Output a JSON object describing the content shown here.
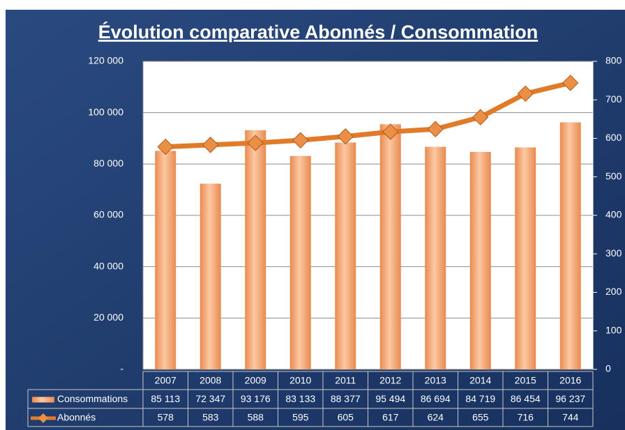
{
  "chart_data": {
    "type": "bar",
    "title": "Évolution comparative Abonnés / Consommation",
    "categories": [
      "2007",
      "2008",
      "2009",
      "2010",
      "2011",
      "2012",
      "2013",
      "2014",
      "2015",
      "2016"
    ],
    "series": [
      {
        "name": "Consommations",
        "type": "bar",
        "color": "#f5a36e",
        "values": [
          85113,
          72347,
          93176,
          83133,
          88377,
          95494,
          86694,
          84719,
          86454,
          96237
        ],
        "value_labels": [
          "85 113",
          "72 347",
          "93 176",
          "83 133",
          "88 377",
          "95 494",
          "86 694",
          "84 719",
          "86 454",
          "96 237"
        ]
      },
      {
        "name": "Abonnés",
        "type": "line",
        "axis": "y2",
        "color": "#e07b2a",
        "values": [
          578,
          583,
          588,
          595,
          605,
          617,
          624,
          655,
          716,
          744
        ]
      }
    ],
    "ylim": [
      0,
      120000
    ],
    "yticks": [
      {
        "value": 0,
        "label": "-"
      },
      {
        "value": 20000,
        "label": "20 000"
      },
      {
        "value": 40000,
        "label": "40 000"
      },
      {
        "value": 60000,
        "label": "60 000"
      },
      {
        "value": 80000,
        "label": "80 000"
      },
      {
        "value": 100000,
        "label": "100 000"
      },
      {
        "value": 120000,
        "label": "120 000"
      }
    ],
    "y2lim": [
      0,
      800
    ],
    "y2ticks": [
      0,
      100,
      200,
      300,
      400,
      500,
      600,
      700,
      800
    ],
    "grid": true
  }
}
